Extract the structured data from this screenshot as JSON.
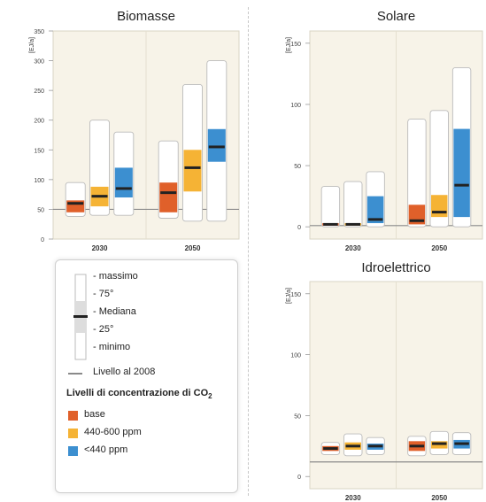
{
  "colors": {
    "base": "#e0602a",
    "mid": "#f5b335",
    "low": "#3c8fd0",
    "panel_bg": "#f7f3e8",
    "box_outline": "#bbbbbb",
    "ref_line": "#8a8a8a",
    "median": "#222222"
  },
  "legend": {
    "items": {
      "max": "- massimo",
      "p75": "- 75°",
      "median": "- Mediana",
      "p25": "- 25°",
      "min": "- minimo"
    },
    "ref_line": "Livello al 2008",
    "conc_title": "Livelli di concentrazione di CO",
    "conc_sub": "2",
    "scenarios": [
      {
        "label": "base",
        "color": "#e0602a"
      },
      {
        "label": "440-600 ppm",
        "color": "#f5b335"
      },
      {
        "label": "<440 ppm",
        "color": "#3c8fd0"
      }
    ]
  },
  "chart_data": [
    {
      "type": "box",
      "title": "Biomasse",
      "ylabel": "[EJ/a]",
      "ylim": [
        0,
        300
      ],
      "yticks": [
        "0",
        "50",
        "100",
        "150",
        "200",
        "250",
        "300",
        "350"
      ],
      "reference_2008": 50,
      "categories": [
        "2030",
        "2050"
      ],
      "series": [
        {
          "scenario": "base",
          "color": "#e0602a",
          "boxes": [
            {
              "min": 38,
              "q1": 45,
              "median": 60,
              "q3": 65,
              "max": 95
            },
            {
              "min": 35,
              "q1": 45,
              "median": 78,
              "q3": 95,
              "max": 165
            }
          ]
        },
        {
          "scenario": "440-600 ppm",
          "color": "#f5b335",
          "boxes": [
            {
              "min": 40,
              "q1": 55,
              "median": 72,
              "q3": 88,
              "max": 200
            },
            {
              "min": 30,
              "q1": 80,
              "median": 120,
              "q3": 150,
              "max": 260
            }
          ]
        },
        {
          "scenario": "<440 ppm",
          "color": "#3c8fd0",
          "boxes": [
            {
              "min": 40,
              "q1": 70,
              "median": 85,
              "q3": 120,
              "max": 180
            },
            {
              "min": 30,
              "q1": 130,
              "median": 155,
              "q3": 185,
              "max": 300
            }
          ]
        }
      ]
    },
    {
      "type": "box",
      "title": "Solare",
      "ylabel": "[EJ/a]",
      "ylim": [
        0,
        150
      ],
      "yticks": [
        "0",
        "50",
        "100",
        "150"
      ],
      "reference_2008": 1,
      "categories": [
        "2030",
        "2050"
      ],
      "series": [
        {
          "scenario": "base",
          "color": "#e0602a",
          "boxes": [
            {
              "min": 0,
              "q1": 1,
              "median": 2,
              "q3": 3,
              "max": 33
            },
            {
              "min": 0,
              "q1": 2,
              "median": 5,
              "q3": 18,
              "max": 88
            }
          ]
        },
        {
          "scenario": "440-600 ppm",
          "color": "#f5b335",
          "boxes": [
            {
              "min": 0,
              "q1": 1,
              "median": 2,
              "q3": 3,
              "max": 37
            },
            {
              "min": 0,
              "q1": 8,
              "median": 12,
              "q3": 26,
              "max": 95
            }
          ]
        },
        {
          "scenario": "<440 ppm",
          "color": "#3c8fd0",
          "boxes": [
            {
              "min": 0,
              "q1": 3,
              "median": 6,
              "q3": 25,
              "max": 45
            },
            {
              "min": 0,
              "q1": 8,
              "median": 34,
              "q3": 80,
              "max": 130
            }
          ]
        }
      ]
    },
    {
      "type": "box",
      "title": "Idroelettrico",
      "ylabel": "[EJ/a]",
      "ylim": [
        0,
        150
      ],
      "yticks": [
        "0",
        "50",
        "100",
        "150"
      ],
      "reference_2008": 12,
      "categories": [
        "2030",
        "2050"
      ],
      "series": [
        {
          "scenario": "base",
          "color": "#e0602a",
          "boxes": [
            {
              "min": 18,
              "q1": 21,
              "median": 23,
              "q3": 25,
              "max": 28
            },
            {
              "min": 17,
              "q1": 21,
              "median": 25,
              "q3": 29,
              "max": 33
            }
          ]
        },
        {
          "scenario": "440-600 ppm",
          "color": "#f5b335",
          "boxes": [
            {
              "min": 17,
              "q1": 22,
              "median": 25,
              "q3": 28,
              "max": 35
            },
            {
              "min": 18,
              "q1": 23,
              "median": 27,
              "q3": 29,
              "max": 37
            }
          ]
        },
        {
          "scenario": "<440 ppm",
          "color": "#3c8fd0",
          "boxes": [
            {
              "min": 18,
              "q1": 22,
              "median": 25,
              "q3": 27,
              "max": 32
            },
            {
              "min": 18,
              "q1": 23,
              "median": 27,
              "q3": 30,
              "max": 36
            }
          ]
        }
      ]
    }
  ]
}
